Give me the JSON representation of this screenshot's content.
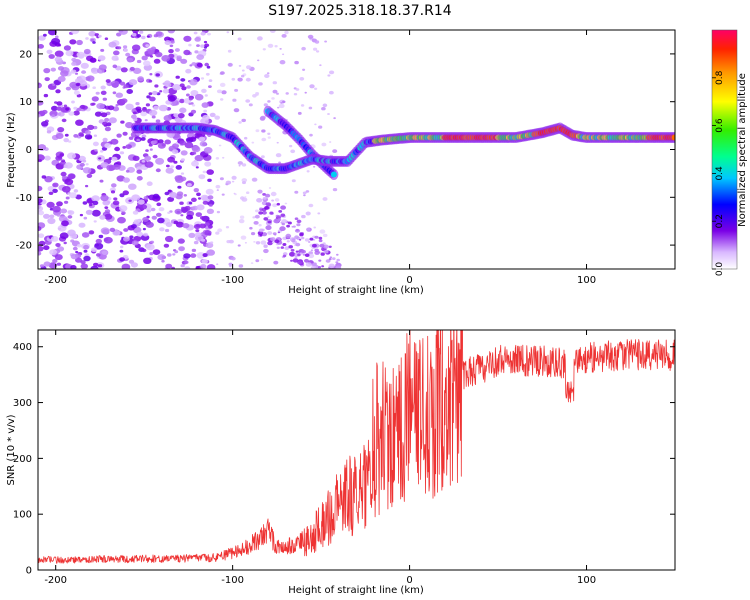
{
  "title": "S197.2025.318.18.37.R14",
  "chart_data": [
    {
      "type": "heatmap",
      "xlabel": "Height of straight line (km)",
      "ylabel": "Frequency (Hz)",
      "xlim": [
        -210,
        150
      ],
      "ylim": [
        -25,
        25
      ],
      "xticks": [
        -200,
        -100,
        0,
        100
      ],
      "yticks": [
        -20,
        -10,
        0,
        10,
        20
      ],
      "colorbar": {
        "label": "Normalized spectral amplitude",
        "range": [
          0.0,
          1.0
        ],
        "ticks": [
          "0.0",
          "0.2",
          "0.4",
          "0.6",
          "0.8"
        ]
      },
      "main_track": {
        "height_km": [
          -155,
          -140,
          -130,
          -120,
          -110,
          -100,
          -90,
          -80,
          -70,
          -55,
          -45,
          -35,
          -25,
          -15,
          0,
          20,
          40,
          60,
          75,
          85,
          92,
          100,
          120,
          150
        ],
        "frequency_hz": [
          4.5,
          4.5,
          4.5,
          4.5,
          4.0,
          2.5,
          -1.5,
          -4.0,
          -4.0,
          -2.0,
          -2.5,
          -2.5,
          1.5,
          2.0,
          2.5,
          2.5,
          2.5,
          2.5,
          3.5,
          4.5,
          3.0,
          2.5,
          2.5,
          2.5
        ]
      },
      "secondary_track": {
        "height_km": [
          -80,
          -70,
          -62,
          -55,
          -48,
          -42
        ],
        "frequency_hz": [
          8.0,
          5.0,
          2.0,
          -1.0,
          -3.5,
          -5.5
        ]
      }
    },
    {
      "type": "line",
      "xlabel": "Height of straight line (km)",
      "ylabel": "SNR (10 * v/v)",
      "xlim": [
        -210,
        150
      ],
      "ylim": [
        0,
        430
      ],
      "xticks": [
        -200,
        -100,
        0,
        100
      ],
      "yticks": [
        0,
        100,
        200,
        300,
        400
      ],
      "series": [
        {
          "name": "SNR",
          "color": "#ee3333",
          "x": [
            -210,
            -150,
            -110,
            -95,
            -85,
            -80,
            -75,
            -65,
            -55,
            -45,
            -35,
            -25,
            -20,
            -15,
            -10,
            -5,
            0,
            5,
            10,
            15,
            20,
            30,
            40,
            50,
            70,
            90,
            100,
            120,
            150
          ],
          "y": [
            18,
            20,
            22,
            35,
            55,
            70,
            40,
            45,
            60,
            100,
            130,
            150,
            175,
            230,
            220,
            250,
            280,
            300,
            250,
            290,
            330,
            350,
            360,
            375,
            375,
            370,
            380,
            385,
            385
          ]
        }
      ]
    }
  ]
}
